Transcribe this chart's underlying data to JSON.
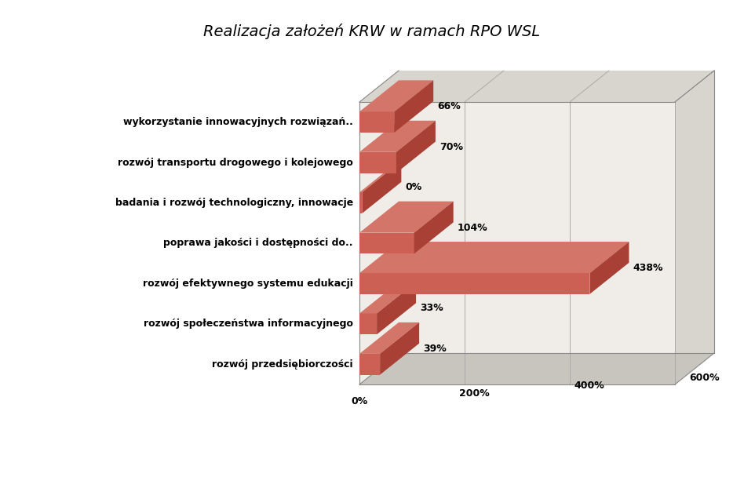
{
  "title": "Realizacja założeń KRW w ramach RPO WSL",
  "categories": [
    "rozwój przedsiębiorczości",
    "rozwój społeczeństwa informacyjnego",
    "rozwój efektywnego systemu edukacji",
    "poprawa jakości i dostępności do..",
    "badania i rozwój technologiczny, innowacje",
    "rozwój transportu drogowego i kolejowego",
    "wykorzystanie innowacyjnych rozwiązań.."
  ],
  "values": [
    39,
    33,
    438,
    104,
    0,
    70,
    66
  ],
  "bar_color_front": "#CD6055",
  "bar_color_top": "#D4756A",
  "bar_color_side": "#A84035",
  "bg_white": "#FFFFFF",
  "bg_light": "#F0EDE8",
  "bg_panel": "#D8D5CE",
  "bg_floor": "#C8C5BE",
  "grid_color": "#AAAAAA",
  "title_fontsize": 14,
  "label_fontsize": 9,
  "value_fontsize": 9,
  "xtick_values": [
    0,
    200,
    400,
    600
  ],
  "xtick_labels": [
    "0%",
    "200%",
    "400%",
    "600%"
  ]
}
